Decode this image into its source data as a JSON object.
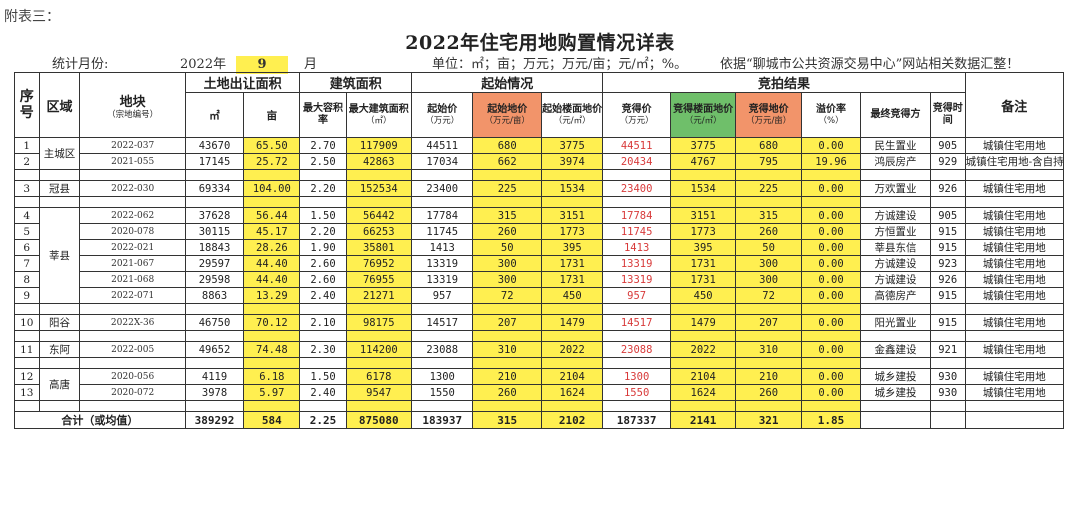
{
  "header": {
    "appendix": "附表三：",
    "title": "2022年住宅用地购置情况详表",
    "stat_month_label": "统计月份:",
    "year": "2022年",
    "month": "9",
    "month_unit": "月",
    "unit": "单位：㎡；亩；万元；万元/亩；元/㎡；%。",
    "source": "依据“聊城市公共资源交易中心”网站相关数据汇整！"
  },
  "colors": {
    "yellow": "#ffef50",
    "orange": "#f2946a",
    "green": "#6fbf6a",
    "red_text": "#d83a3a"
  },
  "columns": {
    "seq": "序号",
    "region": "区域",
    "parcel": "地块",
    "parcel_sub": "（宗地编号）",
    "land_area": "土地出让面积",
    "sqm": "㎡",
    "mu": "亩",
    "build_area": "建筑面积",
    "max_far": "最大容积率",
    "max_build": "最大建筑面积",
    "max_build_sub": "（㎡）",
    "start": "起始情况",
    "start_price": "起始价",
    "start_price_sub": "（万元）",
    "start_land_price": "起始地价",
    "start_land_price_sub": "（万元/亩）",
    "start_floor": "起始楼面地价",
    "start_floor_sub": "（元/㎡）",
    "auction": "竞拍结果",
    "bid_price": "竞得价",
    "bid_price_sub": "（万元）",
    "bid_floor": "竞得楼面地价",
    "bid_floor_sub": "（元/㎡）",
    "bid_land": "竞得地价",
    "bid_land_sub": "（万元/亩）",
    "premium": "溢价率",
    "premium_sub": "（%）",
    "winner": "最终竞得方",
    "time": "竞得时间",
    "remark": "备注"
  },
  "rows": [
    {
      "no": "1",
      "region": "主城区",
      "code": "2022-037",
      "sqm": "43670",
      "mu": "65.50",
      "far": "2.70",
      "build": "117909",
      "sp": "44511",
      "slp": "680",
      "sfp": "3775",
      "bp": "44511",
      "bfp": "3775",
      "blp": "680",
      "prem": "0.00",
      "winner": "民生置业",
      "time": "905",
      "remark": "城镇住宅用地"
    },
    {
      "no": "2",
      "region": "",
      "code": "2021-055",
      "sqm": "17145",
      "mu": "25.72",
      "far": "2.50",
      "build": "42863",
      "sp": "17034",
      "slp": "662",
      "sfp": "3974",
      "bp": "20434",
      "bfp": "4767",
      "blp": "795",
      "prem": "19.96",
      "winner": "鸿辰房产",
      "time": "929",
      "remark": "城镇住宅用地-含自持"
    },
    {
      "no": "3",
      "region": "冠县",
      "code": "2022-030",
      "sqm": "69334",
      "mu": "104.00",
      "far": "2.20",
      "build": "152534",
      "sp": "23400",
      "slp": "225",
      "sfp": "1534",
      "bp": "23400",
      "bfp": "1534",
      "blp": "225",
      "prem": "0.00",
      "winner": "万欢置业",
      "time": "926",
      "remark": "城镇住宅用地"
    },
    {
      "no": "4",
      "region": "莘县",
      "code": "2022-062",
      "sqm": "37628",
      "mu": "56.44",
      "far": "1.50",
      "build": "56442",
      "sp": "17784",
      "slp": "315",
      "sfp": "3151",
      "bp": "17784",
      "bfp": "3151",
      "blp": "315",
      "prem": "0.00",
      "winner": "方诚建设",
      "time": "905",
      "remark": "城镇住宅用地"
    },
    {
      "no": "5",
      "region": "",
      "code": "2020-078",
      "sqm": "30115",
      "mu": "45.17",
      "far": "2.20",
      "build": "66253",
      "sp": "11745",
      "slp": "260",
      "sfp": "1773",
      "bp": "11745",
      "bfp": "1773",
      "blp": "260",
      "prem": "0.00",
      "winner": "方恒置业",
      "time": "915",
      "remark": "城镇住宅用地"
    },
    {
      "no": "6",
      "region": "",
      "code": "2022-021",
      "sqm": "18843",
      "mu": "28.26",
      "far": "1.90",
      "build": "35801",
      "sp": "1413",
      "slp": "50",
      "sfp": "395",
      "bp": "1413",
      "bfp": "395",
      "blp": "50",
      "prem": "0.00",
      "winner": "莘县东信",
      "time": "915",
      "remark": "城镇住宅用地"
    },
    {
      "no": "7",
      "region": "",
      "code": "2021-067",
      "sqm": "29597",
      "mu": "44.40",
      "far": "2.60",
      "build": "76952",
      "sp": "13319",
      "slp": "300",
      "sfp": "1731",
      "bp": "13319",
      "bfp": "1731",
      "blp": "300",
      "prem": "0.00",
      "winner": "方诚建设",
      "time": "923",
      "remark": "城镇住宅用地"
    },
    {
      "no": "8",
      "region": "",
      "code": "2021-068",
      "sqm": "29598",
      "mu": "44.40",
      "far": "2.60",
      "build": "76955",
      "sp": "13319",
      "slp": "300",
      "sfp": "1731",
      "bp": "13319",
      "bfp": "1731",
      "blp": "300",
      "prem": "0.00",
      "winner": "方诚建设",
      "time": "926",
      "remark": "城镇住宅用地"
    },
    {
      "no": "9",
      "region": "",
      "code": "2022-071",
      "sqm": "8863",
      "mu": "13.29",
      "far": "2.40",
      "build": "21271",
      "sp": "957",
      "slp": "72",
      "sfp": "450",
      "bp": "957",
      "bfp": "450",
      "blp": "72",
      "prem": "0.00",
      "winner": "高德房产",
      "time": "915",
      "remark": "城镇住宅用地"
    },
    {
      "no": "10",
      "region": "阳谷",
      "code": "2022X-36",
      "sqm": "46750",
      "mu": "70.12",
      "far": "2.10",
      "build": "98175",
      "sp": "14517",
      "slp": "207",
      "sfp": "1479",
      "bp": "14517",
      "bfp": "1479",
      "blp": "207",
      "prem": "0.00",
      "winner": "阳光置业",
      "time": "915",
      "remark": "城镇住宅用地"
    },
    {
      "no": "11",
      "region": "东阿",
      "code": "2022-005",
      "sqm": "49652",
      "mu": "74.48",
      "far": "2.30",
      "build": "114200",
      "sp": "23088",
      "slp": "310",
      "sfp": "2022",
      "bp": "23088",
      "bfp": "2022",
      "blp": "310",
      "prem": "0.00",
      "winner": "金鑫建设",
      "time": "921",
      "remark": "城镇住宅用地"
    },
    {
      "no": "12",
      "region": "高唐",
      "code": "2020-056",
      "sqm": "4119",
      "mu": "6.18",
      "far": "1.50",
      "build": "6178",
      "sp": "1300",
      "slp": "210",
      "sfp": "2104",
      "bp": "1300",
      "bfp": "2104",
      "blp": "210",
      "prem": "0.00",
      "winner": "城乡建投",
      "time": "930",
      "remark": "城镇住宅用地"
    },
    {
      "no": "13",
      "region": "",
      "code": "2020-072",
      "sqm": "3978",
      "mu": "5.97",
      "far": "2.40",
      "build": "9547",
      "sp": "1550",
      "slp": "260",
      "sfp": "1624",
      "bp": "1550",
      "bfp": "1624",
      "blp": "260",
      "prem": "0.00",
      "winner": "城乡建投",
      "time": "930",
      "remark": "城镇住宅用地"
    }
  ],
  "total": {
    "label": "合计（或均值）",
    "sqm": "389292",
    "mu": "584",
    "far": "2.25",
    "build": "875080",
    "sp": "183937",
    "slp": "315",
    "sfp": "2102",
    "bp": "187337",
    "bfp": "2141",
    "blp": "321",
    "prem": "1.85"
  }
}
